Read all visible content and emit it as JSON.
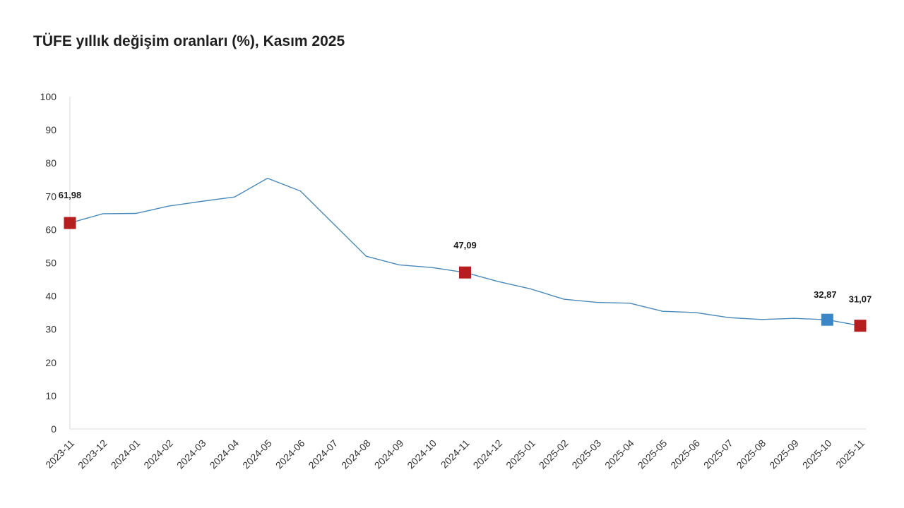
{
  "chart_data": {
    "type": "line",
    "title": "TÜFE yıllık değişim oranları (%), Kasım 2025",
    "xlabel": "",
    "ylabel": "",
    "ylim": [
      0,
      100
    ],
    "yticks": [
      0,
      10,
      20,
      30,
      40,
      50,
      60,
      70,
      80,
      90,
      100
    ],
    "grid": false,
    "categories": [
      "2023-11",
      "2023-12",
      "2024-01",
      "2024-02",
      "2024-03",
      "2024-04",
      "2024-05",
      "2024-06",
      "2024-07",
      "2024-08",
      "2024-09",
      "2024-10",
      "2024-11",
      "2024-12",
      "2025-01",
      "2025-02",
      "2025-03",
      "2025-04",
      "2025-05",
      "2025-06",
      "2025-07",
      "2025-08",
      "2025-09",
      "2025-10",
      "2025-11"
    ],
    "series": [
      {
        "name": "TÜFE yıllık değişim (%)",
        "color": "#4a89b9",
        "values": [
          61.98,
          64.77,
          64.86,
          67.07,
          68.5,
          69.8,
          75.45,
          71.6,
          61.78,
          51.97,
          49.38,
          48.58,
          47.09,
          44.38,
          42.12,
          39.05,
          38.1,
          37.86,
          35.41,
          35.05,
          33.52,
          32.95,
          33.29,
          32.87,
          31.07
        ]
      }
    ],
    "highlighted_points": [
      {
        "category": "2023-11",
        "value": 61.98,
        "label": "61,98",
        "color": "#b51f1f"
      },
      {
        "category": "2024-11",
        "value": 47.09,
        "label": "47,09",
        "color": "#b51f1f"
      },
      {
        "category": "2025-10",
        "value": 32.87,
        "label": "32,87",
        "color": "#3b86c6"
      },
      {
        "category": "2025-11",
        "value": 31.07,
        "label": "31,07",
        "color": "#b51f1f"
      }
    ]
  }
}
